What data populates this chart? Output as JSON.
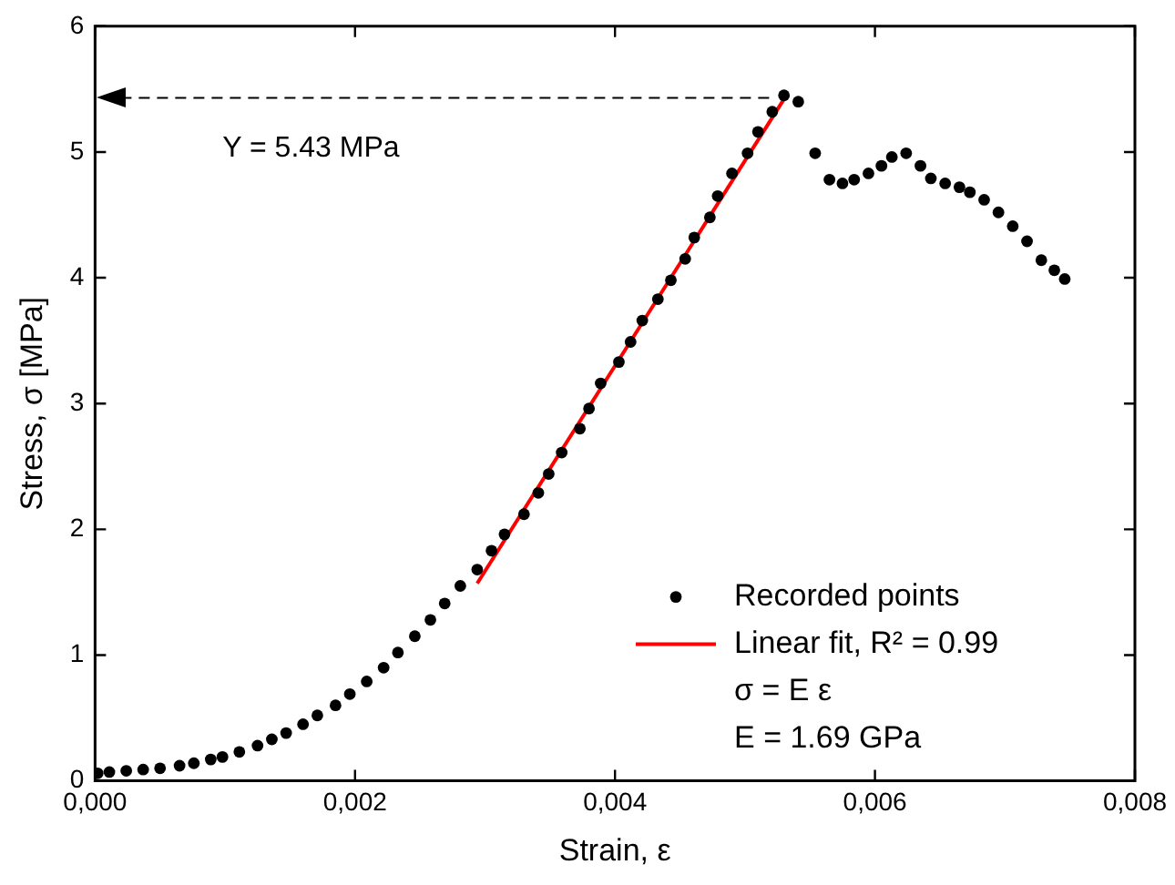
{
  "chart_data": {
    "type": "scatter",
    "xlabel": "Strain, ε",
    "ylabel": "Stress, σ [MPa]",
    "xlim": [
      0,
      0.008
    ],
    "ylim": [
      0,
      6
    ],
    "xticks": [
      {
        "value": 0,
        "label": "0,000"
      },
      {
        "value": 0.002,
        "label": "0,002"
      },
      {
        "value": 0.004,
        "label": "0,004"
      },
      {
        "value": 0.006,
        "label": "0,006"
      },
      {
        "value": 0.008,
        "label": "0,008"
      }
    ],
    "yticks": [
      0,
      1,
      2,
      3,
      4,
      5,
      6
    ],
    "grid": false,
    "legend": "bottom right",
    "series": [
      {
        "name": "Recorded points",
        "color": "#000000",
        "marker": "circle",
        "x": [
          2e-05,
          0.00011,
          0.00024,
          0.00037,
          0.0005,
          0.00065,
          0.00076,
          0.00089,
          0.00098,
          0.00111,
          0.00125,
          0.00136,
          0.00147,
          0.0016,
          0.00171,
          0.00185,
          0.00196,
          0.00209,
          0.00222,
          0.00233,
          0.00246,
          0.00258,
          0.00269,
          0.00281,
          0.00294,
          0.00305,
          0.00315,
          0.0033,
          0.00341,
          0.00349,
          0.00359,
          0.00373,
          0.0038,
          0.00389,
          0.00403,
          0.00412,
          0.00421,
          0.00433,
          0.00443,
          0.00454,
          0.00461,
          0.00473,
          0.00479,
          0.0049,
          0.00502,
          0.0051,
          0.00521,
          0.0053,
          0.00541,
          0.00554,
          0.00565,
          0.00575,
          0.00584,
          0.00595,
          0.00605,
          0.00613,
          0.00624,
          0.00635,
          0.00643,
          0.00654,
          0.00665,
          0.00673,
          0.00684,
          0.00695,
          0.00706,
          0.00717,
          0.00728,
          0.00738,
          0.00746
        ],
        "values": [
          0.06,
          0.07,
          0.08,
          0.09,
          0.1,
          0.12,
          0.14,
          0.17,
          0.19,
          0.23,
          0.28,
          0.33,
          0.38,
          0.45,
          0.52,
          0.6,
          0.69,
          0.79,
          0.9,
          1.02,
          1.15,
          1.28,
          1.41,
          1.55,
          1.68,
          1.83,
          1.96,
          2.12,
          2.29,
          2.44,
          2.61,
          2.8,
          2.96,
          3.16,
          3.33,
          3.49,
          3.66,
          3.83,
          3.98,
          4.15,
          4.32,
          4.48,
          4.65,
          4.83,
          4.99,
          5.16,
          5.32,
          5.45,
          5.4,
          4.99,
          4.78,
          4.75,
          4.78,
          4.83,
          4.89,
          4.96,
          4.99,
          4.89,
          4.79,
          4.75,
          4.72,
          4.68,
          4.62,
          4.52,
          4.41,
          4.29,
          4.14,
          4.06,
          3.99
        ]
      },
      {
        "name": "Linear fit, R² = 0.99",
        "type": "line",
        "color": "#ff0000",
        "marker": "none",
        "line_style": "solid",
        "x": [
          0.00294,
          0.0053
        ],
        "values": [
          1.57,
          5.42
        ]
      }
    ],
    "ref_lines": [
      {
        "axis": "y",
        "value": 5.43,
        "label": "Y = 5.43 MPa",
        "color": "#000000",
        "line_style": "dashed"
      }
    ],
    "annotations": [
      "σ = E ε",
      "E = 1.69 GPa"
    ]
  }
}
